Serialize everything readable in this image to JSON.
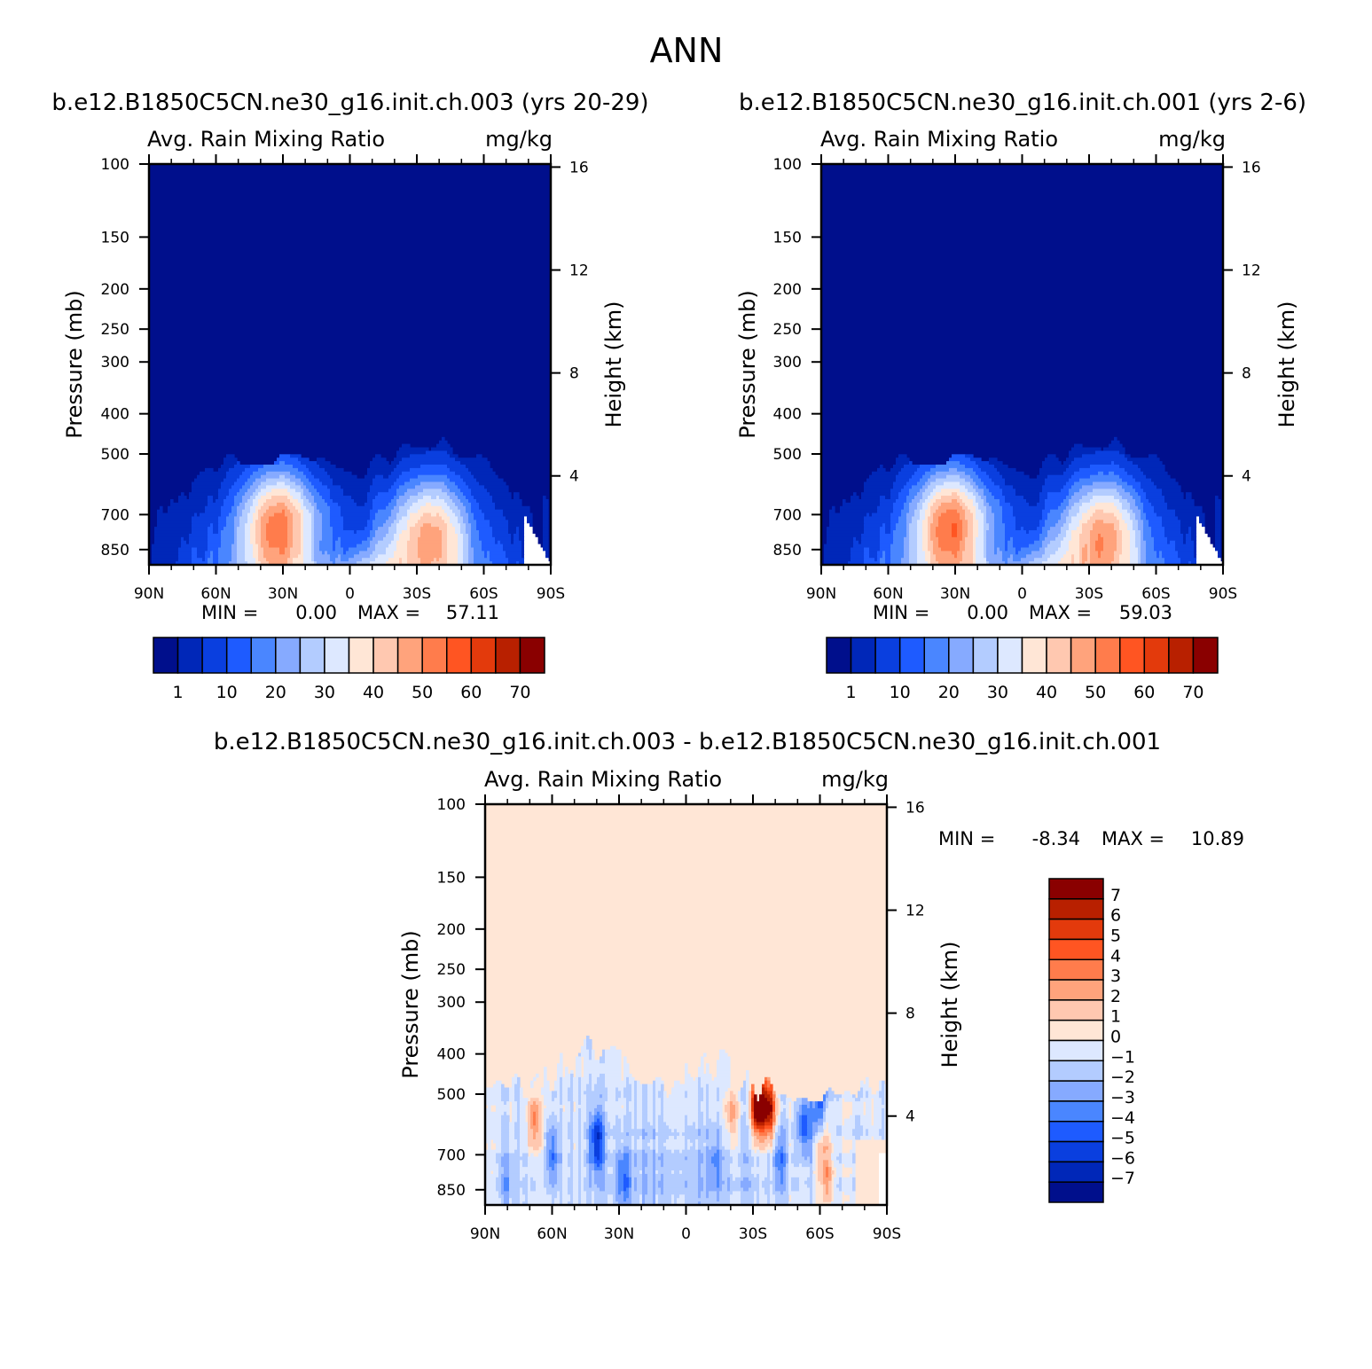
{
  "figure": {
    "title": "ANN"
  },
  "chart_data": [
    {
      "type": "heatmap",
      "panel": "case",
      "title": "b.e12.B1850C5CN.ne30_g16.init.ch.003 (yrs 20-29)",
      "subtitle_left": "Avg. Rain Mixing Ratio",
      "subtitle_right": "mg/kg",
      "xlabel": "",
      "ylabel": "Pressure (mb)",
      "ylabel_right": "Height (km)",
      "x_ticks": [
        "90N",
        "60N",
        "30N",
        "0",
        "30S",
        "60S",
        "90S"
      ],
      "y_ticks": [
        "100",
        "150",
        "200",
        "250",
        "300",
        "400",
        "500",
        "700",
        "850"
      ],
      "y_ticks_right": [
        "16",
        "12",
        "8",
        "4"
      ],
      "min_label": "MIN =",
      "min_value": "0.00",
      "max_label": "MAX =",
      "max_value": "57.11",
      "colorbar_labels": [
        "1",
        "10",
        "20",
        "30",
        "40",
        "50",
        "60",
        "70"
      ],
      "colors": [
        "#000f8c",
        "#0027b8",
        "#0a3fdf",
        "#1e5bff",
        "#4a86ff",
        "#86aaff",
        "#b3ccff",
        "#dde8ff",
        "#ffe6d6",
        "#ffc8b0",
        "#ffa37c",
        "#ff7c4c",
        "#ff5522",
        "#e33a0c",
        "#b82000",
        "#8a0000"
      ],
      "peaks": [
        {
          "lat": 33,
          "p": 720,
          "value": 57
        },
        {
          "lat": -37,
          "p": 760,
          "value": 44
        }
      ]
    },
    {
      "type": "heatmap",
      "panel": "control",
      "title": "b.e12.B1850C5CN.ne30_g16.init.ch.001 (yrs 2-6)",
      "subtitle_left": "Avg. Rain Mixing Ratio",
      "subtitle_right": "mg/kg",
      "xlabel": "",
      "ylabel": "Pressure (mb)",
      "ylabel_right": "Height (km)",
      "x_ticks": [
        "90N",
        "60N",
        "30N",
        "0",
        "30S",
        "60S",
        "90S"
      ],
      "y_ticks": [
        "100",
        "150",
        "200",
        "250",
        "300",
        "400",
        "500",
        "700",
        "850"
      ],
      "y_ticks_right": [
        "16",
        "12",
        "8",
        "4"
      ],
      "min_label": "MIN =",
      "min_value": "0.00",
      "max_label": "MAX =",
      "max_value": "59.03",
      "colorbar_labels": [
        "1",
        "10",
        "20",
        "30",
        "40",
        "50",
        "60",
        "70"
      ],
      "colors": [
        "#000f8c",
        "#0027b8",
        "#0a3fdf",
        "#1e5bff",
        "#4a86ff",
        "#86aaff",
        "#b3ccff",
        "#dde8ff",
        "#ffe6d6",
        "#ffc8b0",
        "#ffa37c",
        "#ff7c4c",
        "#ff5522",
        "#e33a0c",
        "#b82000",
        "#8a0000"
      ],
      "peaks": [
        {
          "lat": 33,
          "p": 720,
          "value": 59
        },
        {
          "lat": -37,
          "p": 760,
          "value": 46
        }
      ]
    },
    {
      "type": "heatmap",
      "panel": "difference",
      "title": "b.e12.B1850C5CN.ne30_g16.init.ch.003 - b.e12.B1850C5CN.ne30_g16.init.ch.001",
      "subtitle_left": "Avg. Rain Mixing Ratio",
      "subtitle_right": "mg/kg",
      "xlabel": "",
      "ylabel": "Pressure (mb)",
      "ylabel_right": "Height (km)",
      "x_ticks": [
        "90N",
        "60N",
        "30N",
        "0",
        "30S",
        "60S",
        "90S"
      ],
      "y_ticks": [
        "100",
        "150",
        "200",
        "250",
        "300",
        "400",
        "500",
        "700",
        "850"
      ],
      "y_ticks_right": [
        "16",
        "12",
        "8",
        "4"
      ],
      "min_label": "MIN =",
      "min_value": "-8.34",
      "max_label": "MAX =",
      "max_value": "10.89",
      "colorbar_labels": [
        "7",
        "6",
        "5",
        "4",
        "3",
        "2",
        "1",
        "0",
        "-1",
        "-2",
        "-3",
        "-4",
        "-5",
        "-6",
        "-7"
      ],
      "colors": [
        "#000f8c",
        "#0027b8",
        "#0a3fdf",
        "#1e5bff",
        "#4a86ff",
        "#86aaff",
        "#b3ccff",
        "#dde8ff",
        "#ffe6d6",
        "#ffc8b0",
        "#ffa37c",
        "#ff7c4c",
        "#ff5522",
        "#e33a0c",
        "#b82000",
        "#8a0000"
      ],
      "background_value": 0.5,
      "blobs": [
        {
          "lat": -32,
          "p": 530,
          "value": 10
        },
        {
          "lat": -37,
          "p": 540,
          "value": 8
        },
        {
          "lat": -61,
          "p": 600,
          "value": 6
        },
        {
          "lat": -63,
          "p": 800,
          "value": 4
        },
        {
          "lat": 68,
          "p": 580,
          "value": 4
        },
        {
          "lat": -20,
          "p": 560,
          "value": 3
        },
        {
          "lat": -60,
          "p": 560,
          "value": -8
        },
        {
          "lat": -53,
          "p": 590,
          "value": -4
        },
        {
          "lat": 40,
          "p": 650,
          "value": -5
        },
        {
          "lat": 60,
          "p": 700,
          "value": -3
        },
        {
          "lat": 28,
          "p": 800,
          "value": -3
        },
        {
          "lat": -42,
          "p": 720,
          "value": -3
        },
        {
          "lat": -13,
          "p": 730,
          "value": -2
        },
        {
          "lat": 80,
          "p": 800,
          "value": -2
        }
      ]
    }
  ]
}
